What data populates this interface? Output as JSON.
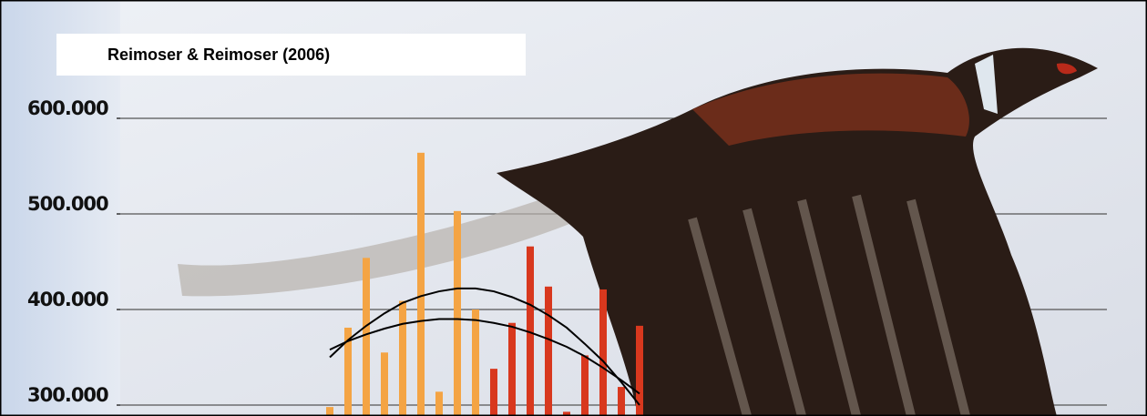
{
  "chart_data": {
    "type": "bar",
    "title": "Reimoser & Reimoser (2006)",
    "categories": [
      null,
      null,
      null,
      null,
      null,
      null,
      null,
      null,
      null,
      null,
      null,
      null,
      null,
      null,
      null,
      null,
      null,
      null
    ],
    "series": [
      {
        "color": "#f4a444",
        "values": [
          298000,
          381000,
          454000,
          355000,
          409000,
          564000,
          314000,
          503000,
          400000,
          null,
          null,
          null,
          null,
          null,
          null,
          null,
          null,
          null
        ]
      },
      {
        "color": "#d8381e",
        "values": [
          null,
          null,
          null,
          null,
          null,
          null,
          null,
          null,
          null,
          338000,
          386000,
          466000,
          424000,
          293000,
          352000,
          421000,
          319000,
          383000
        ]
      },
      {
        "type": "line",
        "color": "#000000",
        "values": [
          358000,
          367000,
          374000,
          380000,
          385000,
          388000,
          390000,
          390000,
          389000,
          386000,
          382000,
          376000,
          369000,
          361000,
          351000,
          339000,
          326000,
          312000
        ]
      },
      {
        "type": "line",
        "color": "#000000",
        "values": [
          350000,
          368000,
          383000,
          396000,
          407000,
          414000,
          419000,
          422000,
          422000,
          419000,
          413000,
          405000,
          394000,
          381000,
          364000,
          346000,
          324000,
          300000
        ]
      }
    ],
    "ylim": [
      288600,
      723800
    ],
    "yticks": [
      {
        "value": 300000,
        "label": "300.000"
      },
      {
        "value": 400000,
        "label": "400.000"
      },
      {
        "value": 500000,
        "label": "500.000"
      },
      {
        "value": 600000,
        "label": "600.000"
      }
    ],
    "grid": true
  }
}
